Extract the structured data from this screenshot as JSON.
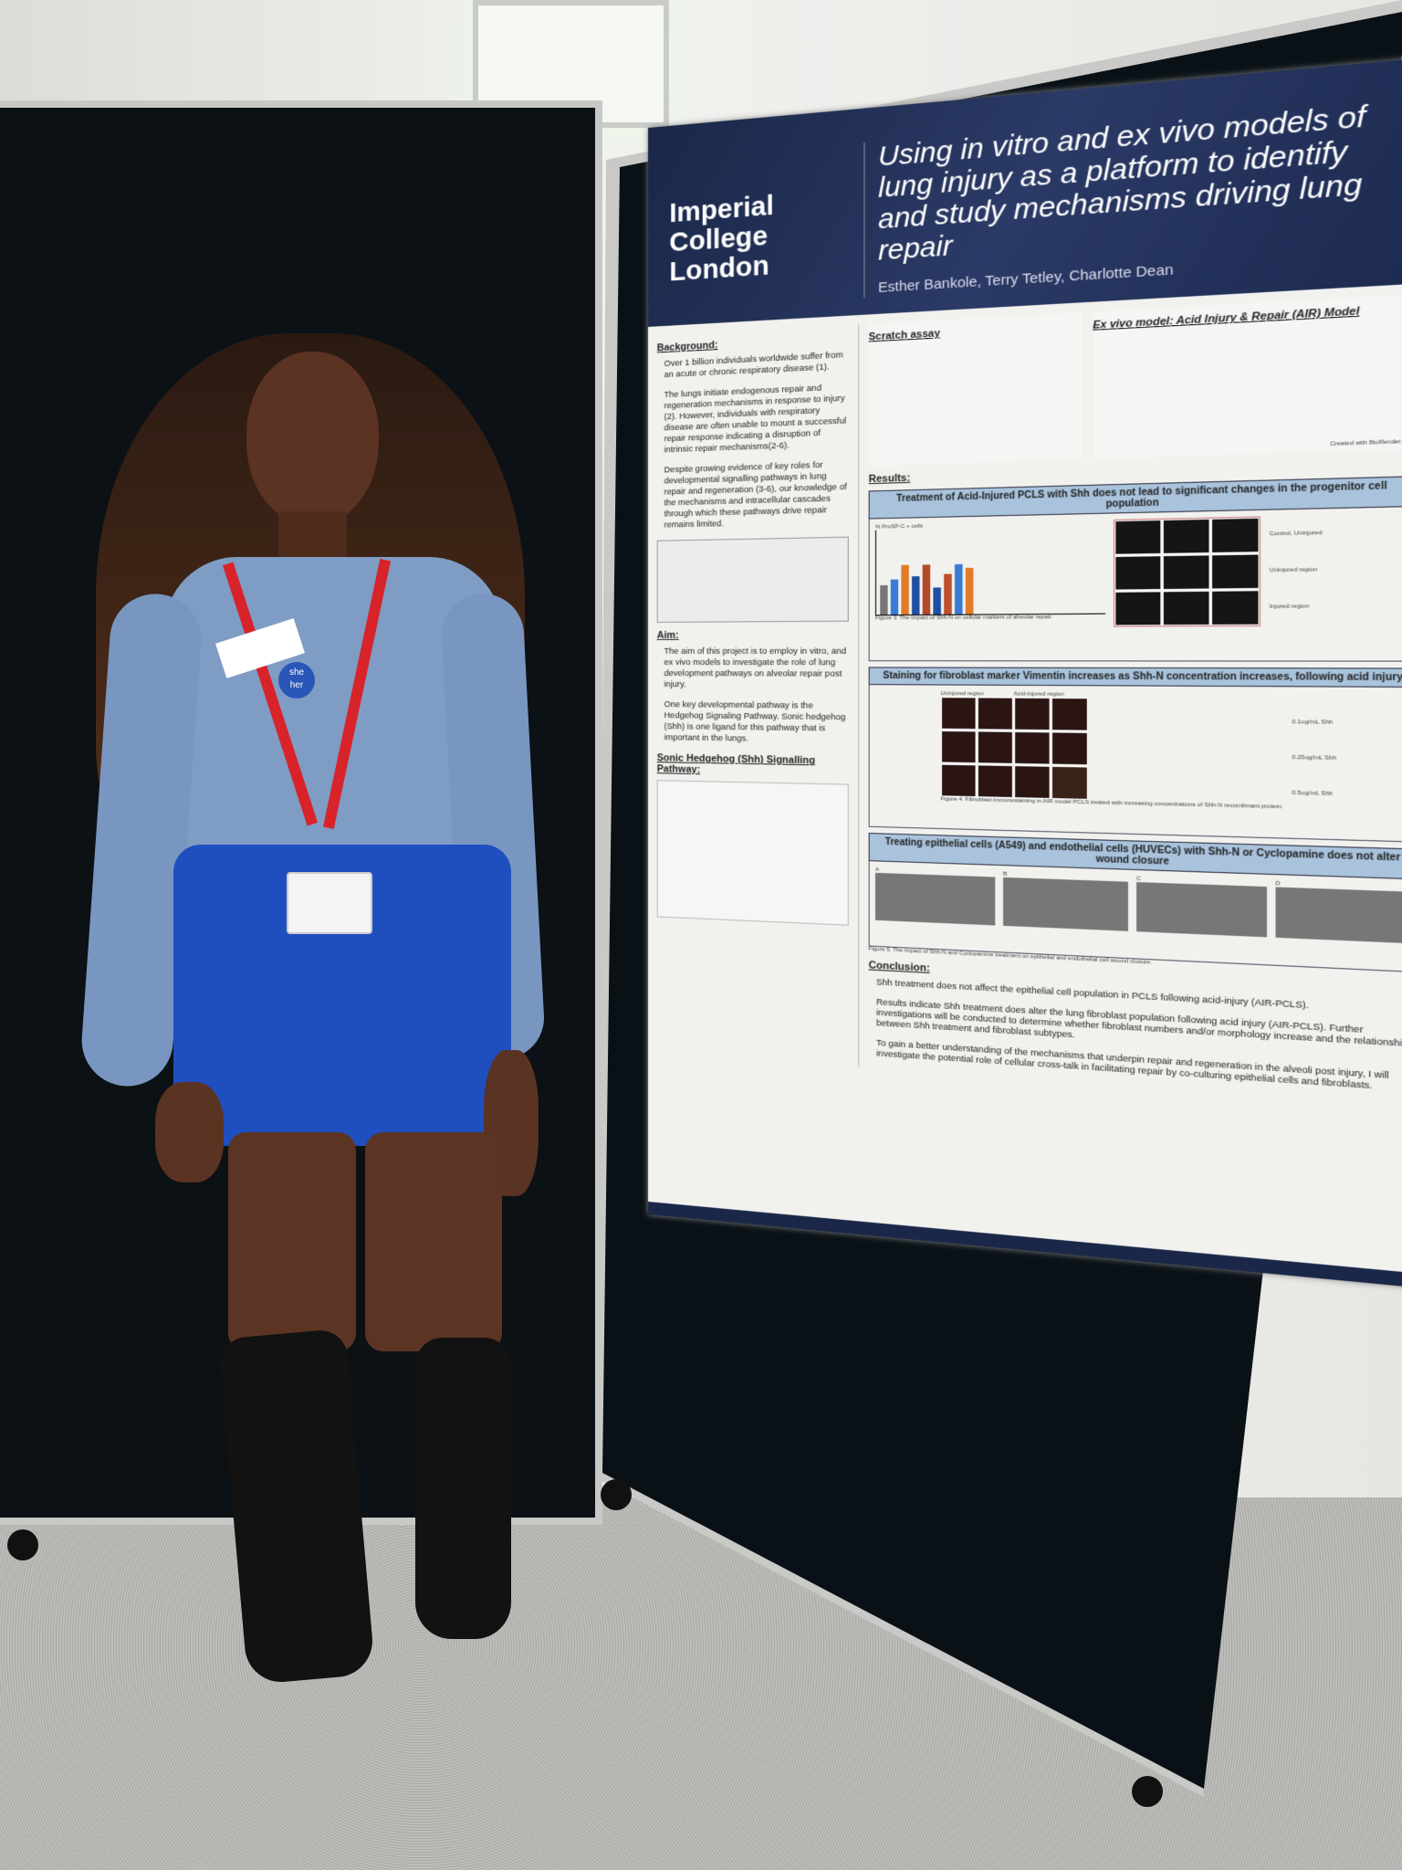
{
  "poster": {
    "institution": "Imperial College London",
    "title": "Using in vitro and ex vivo models of lung injury as a platform to identify and study mechanisms driving lung repair",
    "authors": "Esther Bankole, Terry Tetley, Charlotte Dean",
    "background": {
      "heading": "Background:",
      "bullets": [
        "Over 1 billion individuals worldwide suffer from an acute or chronic respiratory disease (1).",
        "The lungs initiate endogenous repair and regeneration mechanisms in response to injury (2). However, individuals with respiratory disease are often unable to mount a successful repair response indicating a disruption of intrinsic repair mechanisms(2-6).",
        "Despite growing evidence of key roles for developmental signalling pathways in lung repair and regeneration (3-6), our knowledge of the mechanisms and intracellular cascades through which these pathways drive repair remains limited."
      ]
    },
    "aim": {
      "heading": "Aim:",
      "bullets": [
        "The aim of this project is to employ in vitro, and ex vivo models to investigate the role of lung development pathways on alveolar repair post injury.",
        "One key developmental pathway is the Hedgehog Signaling Pathway. Sonic hedgehog (Shh) is one ligand for this pathway that is important in the lungs."
      ]
    },
    "shh_heading": "Sonic Hedgehog (Shh) Signalling Pathway:",
    "scratch_heading": "Scratch assay",
    "air_heading": "Ex vivo model: Acid Injury & Repair (AIR) Model",
    "biorender": "Created with BioRender.com",
    "results_heading": "Results:",
    "result1": {
      "title": "Treatment of Acid-Injured PCLS with Shh does not lead to significant changes in the progenitor cell population",
      "ylabel": "% ProSP-C + cells",
      "rows": [
        "Control, Uninjured",
        "Uninjured region",
        "Injured region"
      ],
      "caption": "Figure 3. The impact of Shh-N on cellular markers of alveolar repair."
    },
    "result2": {
      "title": "Staining for fibroblast marker Vimentin increases as Shh-N concentration increases, following acid injury",
      "cols": [
        "Uninjured region",
        "Acid-injured region"
      ],
      "rows": [
        "0.1ug/mL Shh",
        "0.25ug/mL Shh",
        "0.5ug/mL Shh"
      ],
      "caption": "Figure 4. Fibroblast immunostaining in AIR model PCLS treated with increasing concentrations of Shh-N recombinant protein."
    },
    "result3": {
      "title": "Treating epithelial cells (A549) and endothelial cells (HUVECs) with Shh-N or Cyclopamine does not alter wound closure",
      "panels": [
        "A",
        "B",
        "C",
        "D"
      ],
      "caption": "Figure 5. The impact of Shh-N and Cyclopamine treatment on epithelial and endothelial cell wound closure."
    },
    "conclusion": {
      "heading": "Conclusion:",
      "bullets": [
        "Shh treatment does not affect the epithelial cell population in PCLS following acid-injury (AIR-PCLS).",
        "Results indicate Shh treatment does alter the lung fibroblast population following acid injury (AIR-PCLS). Further investigations will be conducted to determine whether fibroblast numbers and/or morphology increase and the relationship between Shh treatment and fibroblast subtypes.",
        "To gain a better understanding of the mechanisms that underpin repair and regeneration in the alveoli post injury, I will investigate the potential role of cellular cross-talk in facilitating repair by co-culturing epithelial cells and fibroblasts."
      ]
    }
  },
  "badge": {
    "pronoun_top": "she",
    "pronoun_bottom": "her"
  },
  "colors": {
    "poster_header": "#1a2748",
    "banner": "#a9c3dc",
    "shirt": "#7f9cc4",
    "skirt": "#1f4fbf",
    "lanyard": "#d8232a"
  }
}
